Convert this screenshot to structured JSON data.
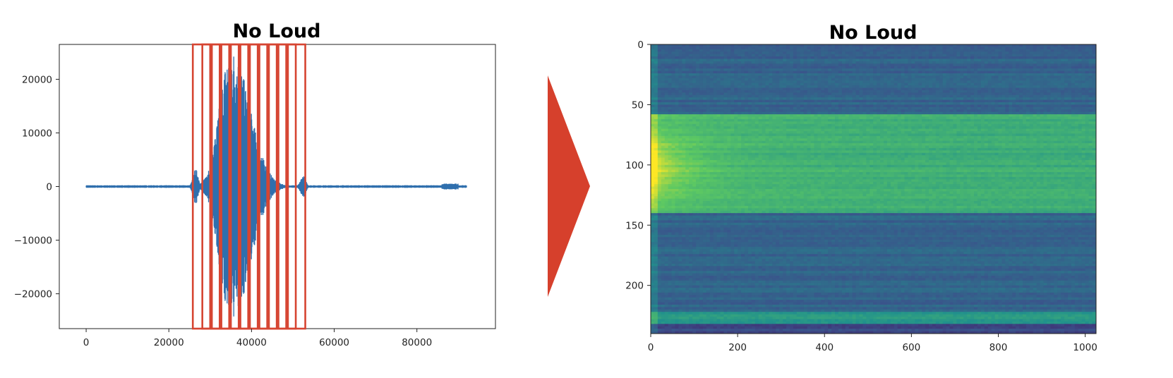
{
  "chart_data": [
    {
      "type": "line",
      "title": "No Loud",
      "xlabel": "",
      "ylabel": "",
      "xlim": [
        -6500,
        99000
      ],
      "ylim": [
        -26500,
        26500
      ],
      "x_ticks": [
        0,
        20000,
        40000,
        60000,
        80000
      ],
      "y_ticks": [
        20000,
        10000,
        0,
        -10000,
        -20000
      ],
      "x_tick_labels": [
        "0",
        "20000",
        "40000",
        "60000",
        "80000"
      ],
      "y_tick_labels": [
        "20000",
        "10000",
        "0",
        "−10000",
        "−20000"
      ],
      "grid": false,
      "line_color": "#2f6fad",
      "signal_extent": [
        0,
        92000
      ],
      "envelope_peak_at": 35000,
      "envelope_peak_amplitude": 26000,
      "framing_boxes": {
        "color": "#d64532",
        "x_starts": [
          25800,
          28100,
          30400,
          32700,
          35000,
          37300,
          39600,
          41900,
          44200,
          46500,
          48800
        ],
        "width": 4200,
        "y_range": [
          -26500,
          26500
        ]
      }
    },
    {
      "type": "heatmap",
      "title": "No Loud",
      "xlabel": "",
      "ylabel": "",
      "xlim": [
        0,
        1025
      ],
      "ylim": [
        240,
        0
      ],
      "x_ticks": [
        0,
        200,
        400,
        600,
        800,
        1000
      ],
      "y_ticks": [
        0,
        50,
        100,
        150,
        200
      ],
      "x_tick_labels": [
        "0",
        "200",
        "400",
        "600",
        "800",
        "1000"
      ],
      "y_tick_labels": [
        "0",
        "50",
        "100",
        "150",
        "200"
      ],
      "colormap": "viridis",
      "bands": [
        {
          "rows": [
            0,
            58
          ],
          "level": "low"
        },
        {
          "rows": [
            58,
            140
          ],
          "level": "high"
        },
        {
          "rows": [
            140,
            222
          ],
          "level": "low"
        },
        {
          "rows": [
            222,
            232
          ],
          "level": "medium"
        },
        {
          "rows": [
            232,
            240
          ],
          "level": "very low"
        }
      ]
    }
  ],
  "arrow_color": "#d6402c"
}
